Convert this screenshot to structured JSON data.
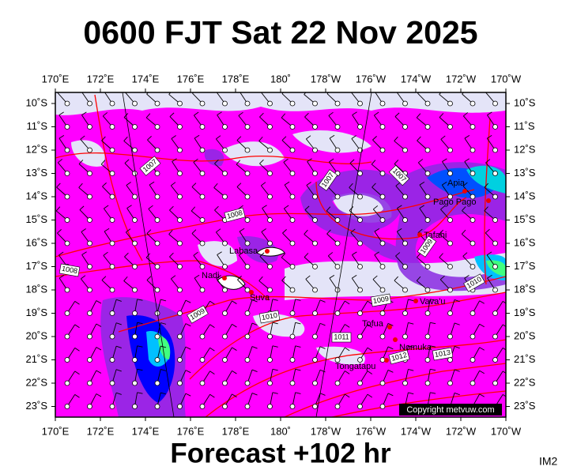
{
  "header": {
    "title": "0600 FJT Sat 22 Nov 2025"
  },
  "map": {
    "lon_labels": [
      "170˚E",
      "172˚E",
      "174˚E",
      "176˚E",
      "178˚E",
      "180˚",
      "178˚W",
      "176˚W",
      "174˚W",
      "172˚W",
      "170˚W"
    ],
    "lat_labels": [
      "10˚S",
      "11˚S",
      "12˚S",
      "13˚S",
      "14˚S",
      "15˚S",
      "16˚S",
      "17˚S",
      "18˚S",
      "19˚S",
      "20˚S",
      "21˚S",
      "22˚S",
      "23˚S"
    ],
    "places": [
      "Apia",
      "Pago Pago",
      "Tafahi",
      "Labasa",
      "Nadi",
      "Suva",
      "Vava'u",
      "Tofua",
      "Nomuka",
      "Tongatapu"
    ],
    "isobar_labels": [
      "1007",
      "1007",
      "1007",
      "1008",
      "1008",
      "1009",
      "1009",
      "1009",
      "1010",
      "1010",
      "1011",
      "1012",
      "1013"
    ]
  },
  "footer": {
    "subtitle": "Forecast +102 hr",
    "copyright": "Copyright metvuw.com",
    "code": "IM2"
  }
}
